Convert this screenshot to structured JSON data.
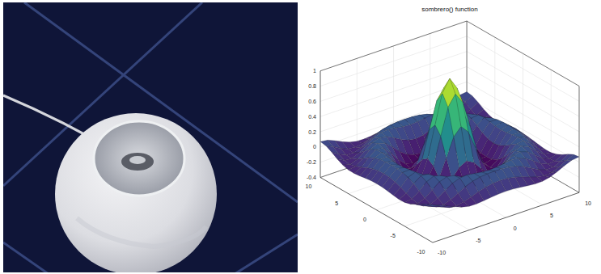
{
  "chart_data": {
    "type": "surface",
    "title": "sombrero() function",
    "x": [
      -10,
      -9,
      -8,
      -7,
      -6,
      -5,
      -4,
      -3,
      -2,
      -1,
      0,
      1,
      2,
      3,
      4,
      5,
      6,
      7,
      8,
      9,
      10
    ],
    "y": [
      -10,
      -9,
      -8,
      -7,
      -6,
      -5,
      -4,
      -3,
      -2,
      -1,
      0,
      1,
      2,
      3,
      4,
      5,
      6,
      7,
      8,
      9,
      10
    ],
    "z": [
      [
        0.071,
        0.058,
        0.019,
        -0.029,
        -0.067,
        -0.088,
        -0.09,
        -0.081,
        -0.068,
        -0.058,
        -0.054,
        -0.058,
        -0.068,
        -0.081,
        -0.09,
        -0.088,
        -0.067,
        -0.029,
        0.019,
        0.058,
        0.071
      ],
      [
        0.058,
        0.013,
        -0.042,
        -0.081,
        -0.091,
        -0.074,
        -0.042,
        -0.007,
        0.022,
        0.04,
        0.046,
        0.04,
        0.022,
        -0.007,
        -0.042,
        -0.074,
        -0.091,
        -0.081,
        -0.042,
        0.013,
        0.058
      ],
      [
        0.019,
        -0.042,
        -0.084,
        -0.088,
        -0.054,
        -0.001,
        0.052,
        0.09,
        0.112,
        0.121,
        0.124,
        0.121,
        0.112,
        0.09,
        0.052,
        -0.001,
        -0.054,
        -0.088,
        -0.084,
        -0.042,
        0.019
      ],
      [
        -0.029,
        -0.081,
        -0.088,
        -0.046,
        0.022,
        0.085,
        0.121,
        0.128,
        0.115,
        0.1,
        0.094,
        0.1,
        0.115,
        0.128,
        0.121,
        0.085,
        0.022,
        -0.046,
        -0.088,
        -0.081,
        -0.029
      ],
      [
        -0.067,
        -0.091,
        -0.054,
        0.022,
        0.095,
        0.128,
        0.111,
        0.061,
        0.007,
        -0.033,
        -0.047,
        -0.033,
        0.007,
        0.061,
        0.111,
        0.128,
        0.095,
        0.022,
        -0.054,
        -0.091,
        -0.067
      ],
      [
        -0.088,
        -0.074,
        -0.001,
        0.085,
        0.128,
        0.1,
        0.019,
        -0.075,
        -0.145,
        -0.182,
        -0.192,
        -0.182,
        -0.145,
        -0.075,
        0.019,
        0.1,
        0.128,
        0.085,
        -0.001,
        -0.074,
        -0.088
      ],
      [
        -0.09,
        -0.042,
        0.052,
        0.121,
        0.111,
        0.019,
        -0.104,
        -0.192,
        -0.217,
        -0.202,
        -0.189,
        -0.202,
        -0.217,
        -0.192,
        -0.104,
        0.019,
        0.111,
        0.121,
        0.052,
        -0.042,
        -0.09
      ],
      [
        -0.081,
        -0.007,
        0.09,
        0.128,
        0.061,
        -0.075,
        -0.192,
        -0.21,
        -0.124,
        -0.007,
        0.047,
        -0.007,
        -0.124,
        -0.21,
        -0.192,
        -0.075,
        0.061,
        0.128,
        0.09,
        -0.007,
        -0.081
      ],
      [
        -0.068,
        0.022,
        0.112,
        0.115,
        0.007,
        -0.145,
        -0.217,
        -0.124,
        0.109,
        0.352,
        0.455,
        0.352,
        0.109,
        -0.124,
        -0.217,
        -0.145,
        0.007,
        0.115,
        0.112,
        0.022,
        -0.068
      ],
      [
        -0.058,
        0.04,
        0.121,
        0.1,
        -0.033,
        -0.182,
        -0.202,
        -0.007,
        0.352,
        0.699,
        0.841,
        0.699,
        0.352,
        -0.007,
        -0.202,
        -0.182,
        -0.033,
        0.1,
        0.121,
        0.04,
        -0.058
      ],
      [
        -0.054,
        0.046,
        0.124,
        0.094,
        -0.047,
        -0.192,
        -0.189,
        0.047,
        0.455,
        0.841,
        1,
        0.841,
        0.455,
        0.047,
        -0.189,
        -0.192,
        -0.047,
        0.094,
        0.124,
        0.046,
        -0.054
      ],
      [
        -0.058,
        0.04,
        0.121,
        0.1,
        -0.033,
        -0.182,
        -0.202,
        -0.007,
        0.352,
        0.699,
        0.841,
        0.699,
        0.352,
        -0.007,
        -0.202,
        -0.182,
        -0.033,
        0.1,
        0.121,
        0.04,
        -0.058
      ],
      [
        -0.068,
        0.022,
        0.112,
        0.115,
        0.007,
        -0.145,
        -0.217,
        -0.124,
        0.109,
        0.352,
        0.455,
        0.352,
        0.109,
        -0.124,
        -0.217,
        -0.145,
        0.007,
        0.115,
        0.112,
        0.022,
        -0.068
      ],
      [
        -0.081,
        -0.007,
        0.09,
        0.128,
        0.061,
        -0.075,
        -0.192,
        -0.21,
        -0.124,
        -0.007,
        0.047,
        -0.007,
        -0.124,
        -0.21,
        -0.192,
        -0.075,
        0.061,
        0.128,
        0.09,
        -0.007,
        -0.081
      ],
      [
        -0.09,
        -0.042,
        0.052,
        0.121,
        0.111,
        0.019,
        -0.104,
        -0.192,
        -0.217,
        -0.202,
        -0.189,
        -0.202,
        -0.217,
        -0.192,
        -0.104,
        0.019,
        0.111,
        0.121,
        0.052,
        -0.042,
        -0.09
      ],
      [
        -0.088,
        -0.074,
        -0.001,
        0.085,
        0.128,
        0.1,
        0.019,
        -0.075,
        -0.145,
        -0.182,
        -0.192,
        -0.182,
        -0.145,
        -0.075,
        0.019,
        0.1,
        0.128,
        0.085,
        -0.001,
        -0.074,
        -0.088
      ],
      [
        -0.067,
        -0.091,
        -0.054,
        0.022,
        0.095,
        0.128,
        0.111,
        0.061,
        0.007,
        -0.033,
        -0.047,
        -0.033,
        0.007,
        0.061,
        0.111,
        0.128,
        0.095,
        0.022,
        -0.054,
        -0.091,
        -0.067
      ],
      [
        -0.029,
        -0.081,
        -0.088,
        -0.046,
        0.022,
        0.085,
        0.121,
        0.128,
        0.115,
        0.1,
        0.094,
        0.1,
        0.115,
        0.128,
        0.121,
        0.085,
        0.022,
        -0.046,
        -0.088,
        -0.081,
        -0.029
      ],
      [
        0.019,
        -0.042,
        -0.084,
        -0.088,
        -0.054,
        -0.001,
        0.052,
        0.09,
        0.112,
        0.121,
        0.124,
        0.121,
        0.112,
        0.09,
        0.052,
        -0.001,
        -0.054,
        -0.088,
        -0.084,
        -0.042,
        0.019
      ],
      [
        0.058,
        0.013,
        -0.042,
        -0.081,
        -0.091,
        -0.074,
        -0.042,
        -0.007,
        0.022,
        0.04,
        0.046,
        0.04,
        0.022,
        -0.007,
        -0.042,
        -0.074,
        -0.091,
        -0.081,
        -0.042,
        0.013,
        0.058
      ],
      [
        0.071,
        0.058,
        0.019,
        -0.029,
        -0.067,
        -0.088,
        -0.09,
        -0.081,
        -0.068,
        -0.058,
        -0.054,
        -0.058,
        -0.068,
        -0.081,
        -0.09,
        -0.088,
        -0.067,
        -0.029,
        0.019,
        0.058,
        0.071
      ]
    ],
    "xlim": [
      -10,
      10
    ],
    "ylim": [
      -10,
      10
    ],
    "zlim": [
      -0.4,
      1
    ],
    "xticks": [
      -10,
      -5,
      0,
      5,
      10
    ],
    "yticks": [
      -10,
      -5,
      0,
      5,
      10
    ],
    "zticks": [
      -0.4,
      -0.2,
      0,
      0.2,
      0.4,
      0.6,
      0.8,
      1
    ],
    "grid": true
  }
}
